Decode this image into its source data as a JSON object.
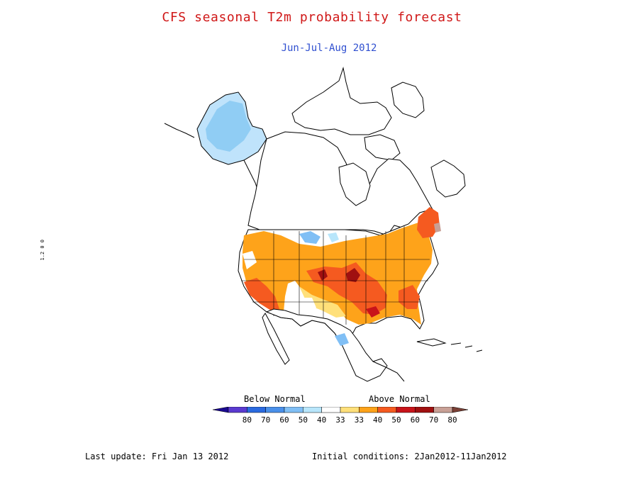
{
  "title": "CFS seasonal T2m probability forecast",
  "subtitle": "Jun-Jul-Aug 2012",
  "legend": {
    "below_label": "Below Normal",
    "above_label": "Above Normal",
    "ticks": [
      "80",
      "70",
      "60",
      "50",
      "40",
      "33",
      "33",
      "40",
      "50",
      "60",
      "70",
      "80"
    ],
    "colors": [
      "#1a0a90",
      "#5a3ad0",
      "#2a6ae0",
      "#4a90ea",
      "#80bff5",
      "#b8e6fb",
      "#ffffff",
      "#ffe07a",
      "#fea31a",
      "#f55a20",
      "#c8141a",
      "#a01010",
      "#c8a096",
      "#7a4036"
    ]
  },
  "footer": {
    "last_update": "Last update: Fri Jan 13 2012",
    "initial_conditions": "Initial conditions: 2Jan2012-11Jan2012"
  },
  "side_mark": "1.2 0 0"
}
